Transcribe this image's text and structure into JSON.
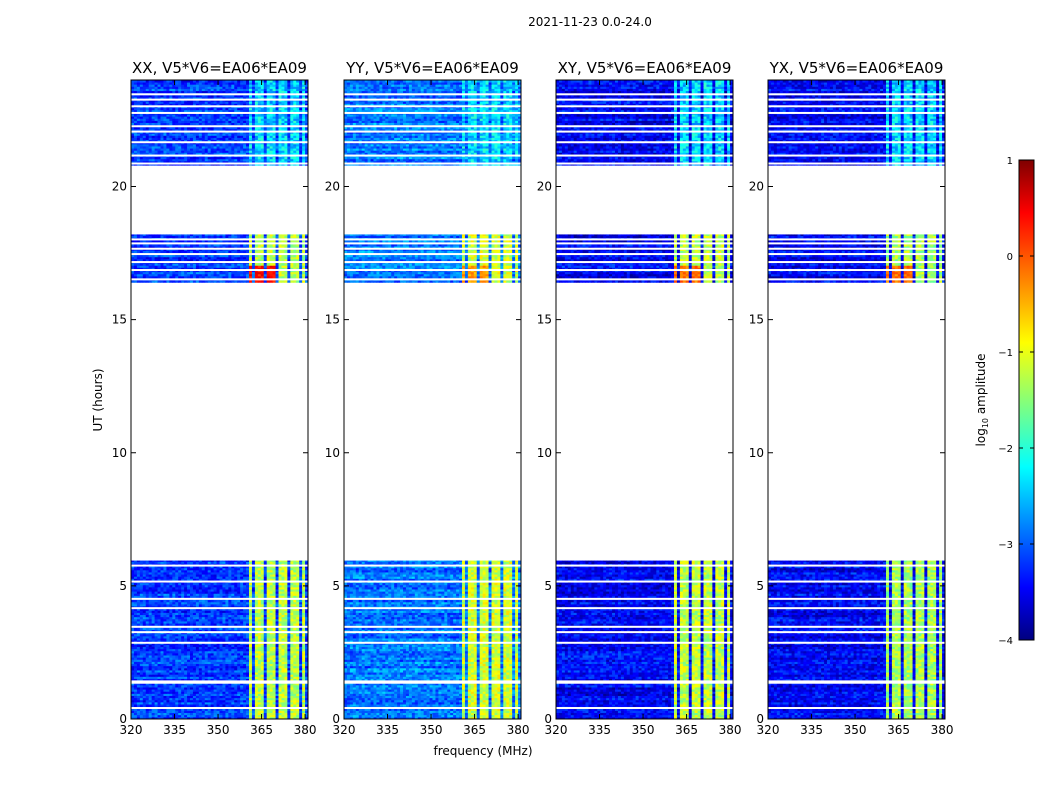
{
  "suptitle": "2021-11-23 0.0-24.0",
  "chart_data": {
    "type": "heatmap",
    "xlabel": "frequency (MHz)",
    "ylabel": "UT (hours)",
    "xlim": [
      320,
      381
    ],
    "ylim": [
      0,
      24
    ],
    "xticks": [
      "320",
      "335",
      "350",
      "365",
      "380"
    ],
    "yticks": [
      "0",
      "5",
      "10",
      "15",
      "20"
    ],
    "xtick_values": [
      320,
      335,
      350,
      365,
      380
    ],
    "ytick_values": [
      0,
      5,
      10,
      15,
      20
    ],
    "panels": [
      {
        "title": "XX, V5*V6=EA06*EA09",
        "baseline_log_amp": -3.1,
        "strong_channel_log_amp": -1.2,
        "peak_log_amp": 0.3
      },
      {
        "title": "YY, V5*V6=EA06*EA09",
        "baseline_log_amp": -2.8,
        "strong_channel_log_amp": -1.1,
        "peak_log_amp": -0.4
      },
      {
        "title": "XY, V5*V6=EA06*EA09",
        "baseline_log_amp": -3.4,
        "strong_channel_log_amp": -1.2,
        "peak_log_amp": -0.2
      },
      {
        "title": "YX, V5*V6=EA06*EA09",
        "baseline_log_amp": -3.4,
        "strong_channel_log_amp": -1.3,
        "peak_log_amp": -0.2
      }
    ],
    "data_time_ranges_hours": [
      [
        0,
        5.95
      ],
      [
        16.4,
        18.2
      ],
      [
        20.8,
        24
      ]
    ],
    "strong_freq_range_mhz": [
      361,
      380
    ],
    "colorbar": {
      "label": "log",
      "label_sub": "10",
      "label_rest": " amplitude",
      "range": [
        -4,
        1
      ],
      "ticks": [
        "1",
        "0",
        "−1",
        "−2",
        "−3",
        "−4"
      ],
      "tick_values": [
        1,
        0,
        -1,
        -2,
        -3,
        -4
      ],
      "colormap": "jet"
    }
  }
}
